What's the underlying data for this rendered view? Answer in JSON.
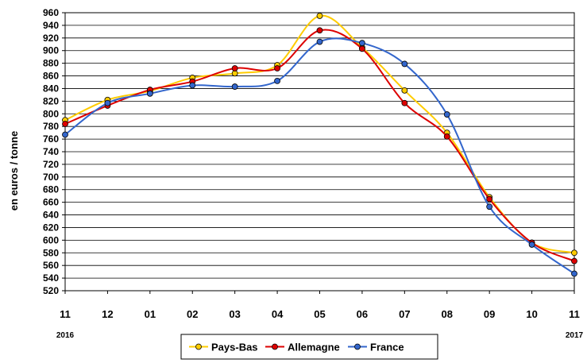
{
  "chart_data": {
    "type": "line",
    "ylabel": "en euros / tonne",
    "ylim": [
      520,
      960
    ],
    "ytick_step": 20,
    "grid": true,
    "legend_position": "bottom",
    "categories": [
      "11",
      "12",
      "01",
      "02",
      "03",
      "04",
      "05",
      "06",
      "07",
      "08",
      "09",
      "10",
      "11"
    ],
    "year_labels": [
      {
        "index": 0,
        "text": "2016"
      },
      {
        "index": 12,
        "text": "2017"
      }
    ],
    "series": [
      {
        "name": "Pays-Bas",
        "color": "#ffcc00",
        "values": [
          790,
          822,
          836,
          857,
          864,
          877,
          955,
          905,
          837,
          770,
          668,
          596,
          580
        ]
      },
      {
        "name": "Allemagne",
        "color": "#dd0000",
        "values": [
          784,
          813,
          838,
          851,
          872,
          872,
          932,
          903,
          817,
          764,
          665,
          596,
          567
        ]
      },
      {
        "name": "France",
        "color": "#3366cc",
        "values": [
          767,
          817,
          832,
          845,
          843,
          852,
          914,
          912,
          879,
          799,
          653,
          593,
          547
        ]
      }
    ]
  }
}
